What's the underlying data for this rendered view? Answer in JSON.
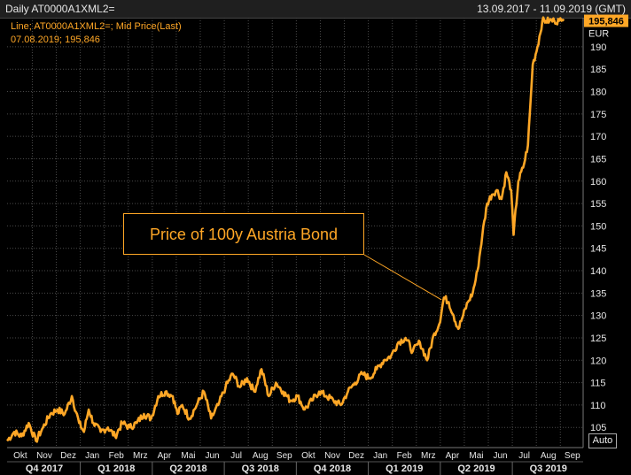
{
  "header": {
    "title": "Daily AT0000A1XML2=",
    "date_range": "13.09.2017 - 11.09.2019 (GMT)"
  },
  "legend": {
    "line1": "Line; AT0000A1XML2=; Mid Price(Last)",
    "line2": "07.08.2019; 195,846"
  },
  "annotation": {
    "text": "Price of 100y Austria Bond"
  },
  "controls": {
    "auto_label": "Auto"
  },
  "colors": {
    "series": "#ffa726",
    "background": "#000000",
    "grid": "#4a4a4a",
    "text": "#e6e6e6"
  },
  "chart_data": {
    "type": "line",
    "title": "Daily AT0000A1XML2=",
    "ylabel": "EUR",
    "ylim": [
      100.5,
      196.5
    ],
    "y_ticks": [
      "105",
      "110",
      "115",
      "120",
      "125",
      "130",
      "135",
      "140",
      "145",
      "150",
      "155",
      "160",
      "165",
      "170",
      "175",
      "180",
      "185",
      "190"
    ],
    "y_unit": "EUR",
    "last_value_label": "195,846",
    "x_domain": [
      0,
      24
    ],
    "month_labels": [
      "Okt",
      "Nov",
      "Dez",
      "Jan",
      "Feb",
      "Mrz",
      "Apr",
      "Mai",
      "Jun",
      "Jul",
      "Aug",
      "Sep",
      "Okt",
      "Nov",
      "Dez",
      "Jan",
      "Feb",
      "Mrz",
      "Apr",
      "Mai",
      "Jun",
      "Jul",
      "Aug",
      "Sep"
    ],
    "month_positions": [
      0.55,
      1.55,
      2.55,
      3.55,
      4.55,
      5.55,
      6.55,
      7.55,
      8.55,
      9.55,
      10.55,
      11.55,
      12.55,
      13.55,
      14.55,
      15.55,
      16.55,
      17.55,
      18.55,
      19.55,
      20.55,
      21.55,
      22.55,
      23.55
    ],
    "quarter_labels": [
      "Q4 2017",
      "Q1 2018",
      "Q2 2018",
      "Q3 2018",
      "Q4 2018",
      "Q1 2019",
      "Q2 2019",
      "Q3 2019"
    ],
    "quarter_positions": [
      1.55,
      4.55,
      7.55,
      10.55,
      13.55,
      16.55,
      19.55,
      22.55
    ],
    "quarter_dividers": [
      3.05,
      6.05,
      9.05,
      12.05,
      15.05,
      18.05,
      21.05
    ],
    "series": [
      {
        "name": "AT0000A1XML2= Mid Price(Last)",
        "x": [
          0,
          0.3,
          0.6,
          0.9,
          1.2,
          1.5,
          1.8,
          2.1,
          2.4,
          2.7,
          3.0,
          3.2,
          3.4,
          3.6,
          3.9,
          4.2,
          4.5,
          4.8,
          5.1,
          5.4,
          5.7,
          6.0,
          6.3,
          6.6,
          6.9,
          7.1,
          7.3,
          7.6,
          7.9,
          8.2,
          8.5,
          8.8,
          9.1,
          9.4,
          9.7,
          10.0,
          10.3,
          10.6,
          10.9,
          11.2,
          11.5,
          11.8,
          12.1,
          12.4,
          12.7,
          13.0,
          13.3,
          13.6,
          13.9,
          14.2,
          14.5,
          14.8,
          15.1,
          15.4,
          15.7,
          16.0,
          16.3,
          16.6,
          16.9,
          17.2,
          17.5,
          17.8,
          18.0,
          18.2,
          18.4,
          18.6,
          18.8,
          19.0,
          19.2,
          19.4,
          19.6,
          19.8,
          20.0,
          20.2,
          20.4,
          20.6,
          20.8,
          21.0,
          21.1,
          21.3,
          21.5,
          21.7,
          21.9,
          22.1,
          22.3,
          22.45,
          22.6,
          22.8,
          23.0,
          23.1,
          23.2
        ],
        "values": [
          102,
          104,
          103,
          106,
          102,
          105,
          108,
          109,
          108,
          112,
          106,
          104,
          109,
          106,
          104,
          105,
          103,
          106,
          105,
          106,
          108,
          107,
          112,
          113,
          112,
          108,
          110,
          107,
          110,
          113,
          107,
          110,
          114,
          117,
          114,
          116,
          113,
          118,
          112,
          115,
          113,
          111,
          112,
          109,
          111,
          113,
          112,
          111,
          110,
          113,
          115,
          117,
          116,
          118,
          120,
          121,
          124,
          125,
          122,
          124,
          120,
          126,
          128,
          134,
          133,
          130,
          127,
          130,
          133,
          135,
          140,
          148,
          155,
          157,
          158,
          156,
          162,
          158,
          148,
          160,
          163,
          168,
          186,
          190,
          195.8,
          195.8,
          195.8,
          195.8,
          195.8,
          195.8,
          195.8
        ]
      }
    ]
  }
}
